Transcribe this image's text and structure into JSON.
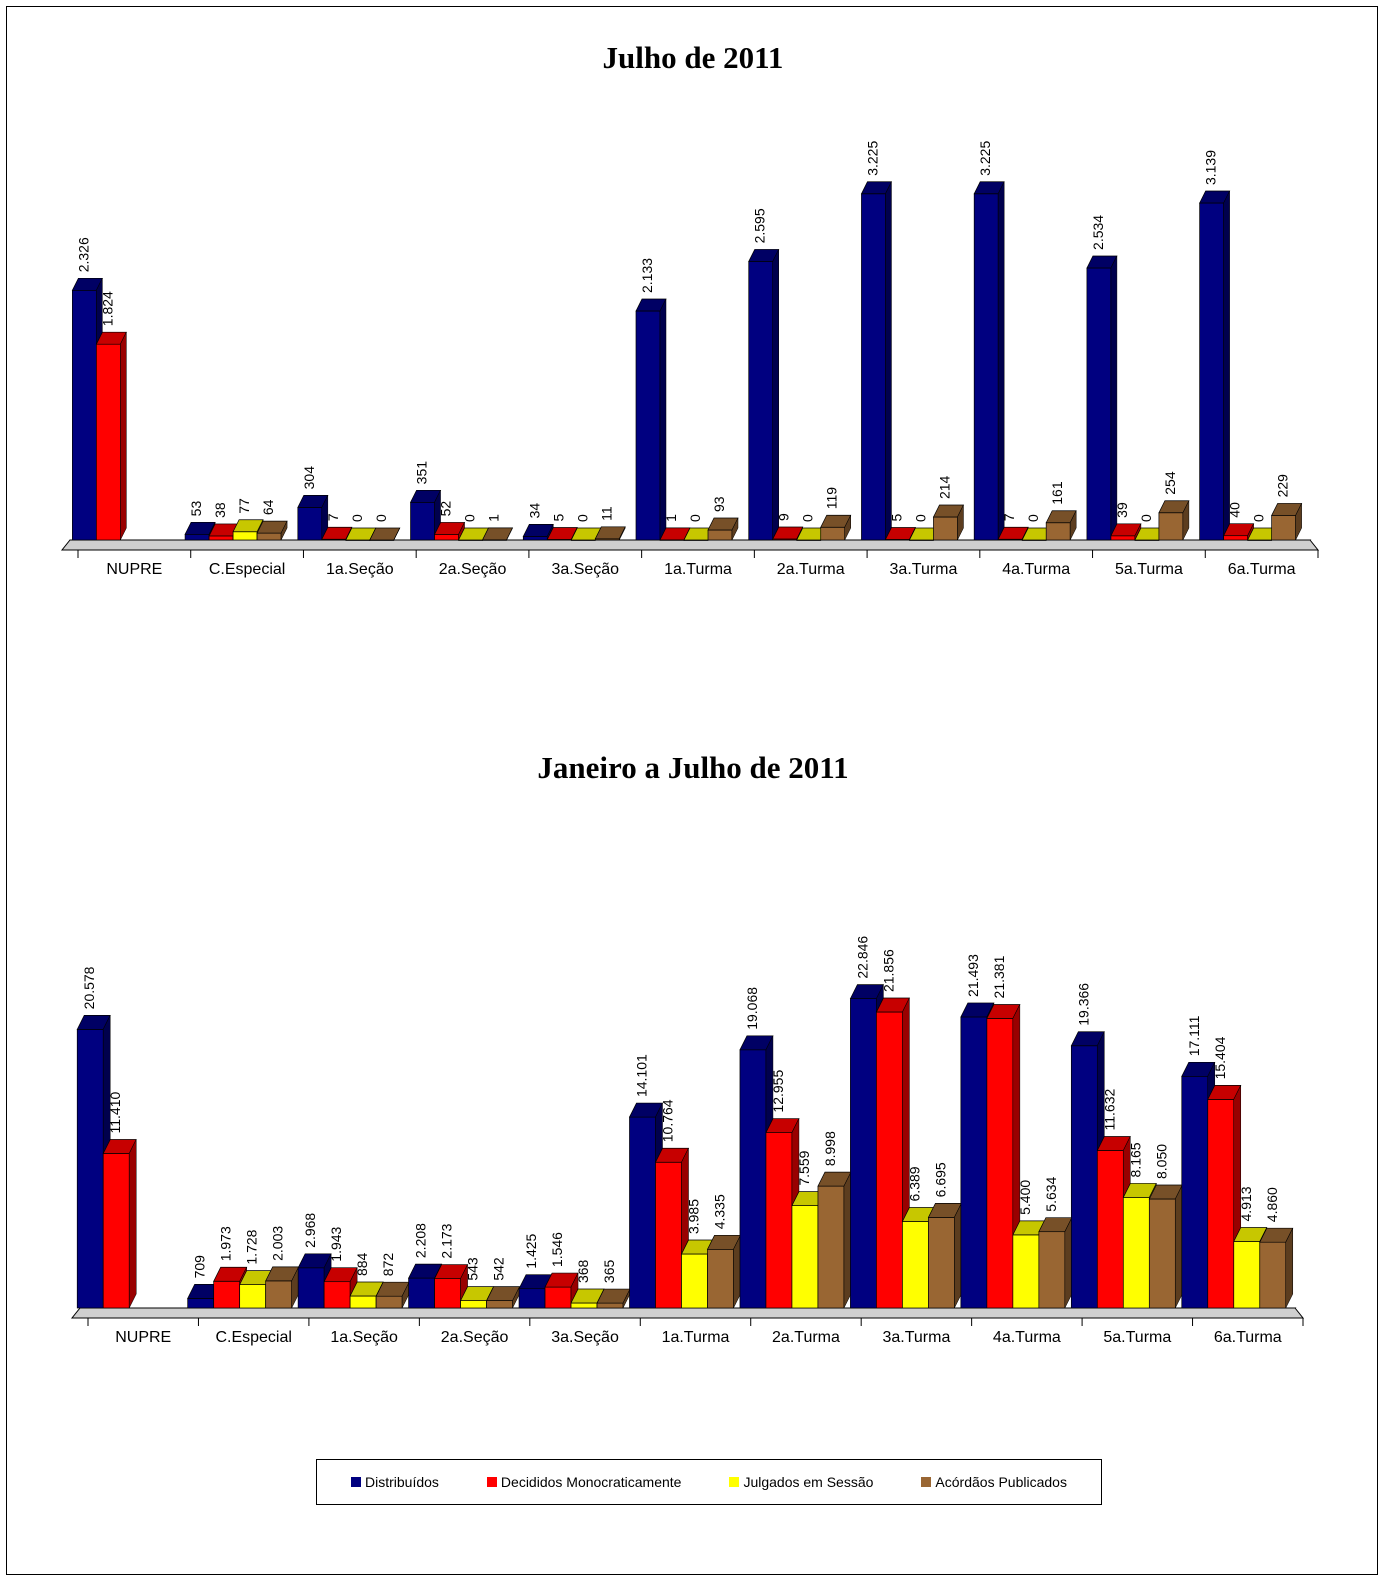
{
  "colors": {
    "Distribuídos": "#000080",
    "Decididos Monocraticamente": "#ff0000",
    "Julgados em Sessão": "#ffff00",
    "Acórdãos Publicados": "#996633"
  },
  "legend": {
    "items": [
      "Distribuídos",
      "Decididos Monocraticamente",
      "Julgados em Sessão",
      "Acórdãos Publicados"
    ]
  },
  "chart_data": [
    {
      "type": "bar",
      "title": "Julho de 2011",
      "categories": [
        "NUPRE",
        "C.Especial",
        "1a.Seção",
        "2a.Seção",
        "3a.Seção",
        "1a.Turma",
        "2a.Turma",
        "3a.Turma",
        "4a.Turma",
        "5a.Turma",
        "6a.Turma"
      ],
      "series": [
        {
          "name": "Distribuídos",
          "values": [
            2326,
            53,
            304,
            351,
            34,
            2133,
            2595,
            3225,
            3225,
            2534,
            3139
          ],
          "labels": [
            "2.326",
            "53",
            "304",
            "351",
            "34",
            "2.133",
            "2.595",
            "3.225",
            "3.225",
            "2.534",
            "3.139"
          ]
        },
        {
          "name": "Decididos Monocraticamente",
          "values": [
            1824,
            38,
            7,
            52,
            5,
            1,
            9,
            5,
            7,
            39,
            40
          ],
          "labels": [
            "1.824",
            "38",
            "7",
            "52",
            "5",
            "1",
            "9",
            "5",
            "7",
            "39",
            "40"
          ]
        },
        {
          "name": "Julgados em Sessão",
          "values": [
            null,
            77,
            0,
            0,
            0,
            0,
            0,
            0,
            0,
            0,
            0
          ],
          "labels": [
            "",
            "77",
            "0",
            "0",
            "0",
            "0",
            "0",
            "0",
            "0",
            "0",
            "0"
          ]
        },
        {
          "name": "Acórdãos Publicados",
          "values": [
            null,
            64,
            0,
            1,
            11,
            93,
            119,
            214,
            161,
            254,
            229
          ],
          "labels": [
            "",
            "64",
            "0",
            "1",
            "11",
            "93",
            "119",
            "214",
            "161",
            "254",
            "229"
          ]
        }
      ],
      "ylim": [
        0,
        3400
      ],
      "grid": false,
      "legend": "bottom"
    },
    {
      "type": "bar",
      "title": "Janeiro a Julho de 2011",
      "categories": [
        "NUPRE",
        "C.Especial",
        "1a.Seção",
        "2a.Seção",
        "3a.Seção",
        "1a.Turma",
        "2a.Turma",
        "3a.Turma",
        "4a.Turma",
        "5a.Turma",
        "6a.Turma"
      ],
      "series": [
        {
          "name": "Distribuídos",
          "values": [
            20578,
            709,
            2968,
            2208,
            1425,
            14101,
            19068,
            22846,
            21493,
            19366,
            17111
          ],
          "labels": [
            "20.578",
            "709",
            "2.968",
            "2.208",
            "1.425",
            "14.101",
            "19.068",
            "22.846",
            "21.493",
            "19.366",
            "17.111"
          ]
        },
        {
          "name": "Decididos Monocraticamente",
          "values": [
            11410,
            1973,
            1943,
            2173,
            1546,
            10764,
            12955,
            21856,
            21381,
            11632,
            15404
          ],
          "labels": [
            "11.410",
            "1.973",
            "1.943",
            "2.173",
            "1.546",
            "10.764",
            "12.955",
            "21.856",
            "21.381",
            "11.632",
            "15.404"
          ]
        },
        {
          "name": "Julgados em Sessão",
          "values": [
            null,
            1728,
            884,
            543,
            368,
            3985,
            7559,
            6389,
            5400,
            8165,
            4913
          ],
          "labels": [
            "",
            "1.728",
            "884",
            "543",
            "368",
            "3.985",
            "7.559",
            "6.389",
            "5.400",
            "8.165",
            "4.913"
          ]
        },
        {
          "name": "Acórdãos Publicados",
          "values": [
            null,
            2003,
            872,
            542,
            365,
            4335,
            8998,
            6695,
            5634,
            8050,
            4860
          ],
          "labels": [
            "",
            "2.003",
            "872",
            "542",
            "365",
            "4.335",
            "8.998",
            "6.695",
            "5.634",
            "8.050",
            "4.860"
          ]
        }
      ],
      "ylim": [
        0,
        24000
      ],
      "grid": false,
      "legend": "bottom"
    }
  ]
}
